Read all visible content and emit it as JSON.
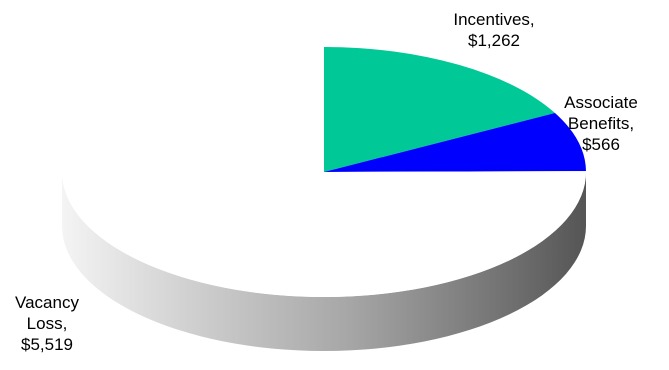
{
  "chart_data": {
    "type": "pie",
    "style": "3d",
    "slices": [
      {
        "label": "Incentives,",
        "value_label": "$1,262",
        "value": 1262,
        "color": "#00C896"
      },
      {
        "label": "Associate Benefits,",
        "value_label": "$566",
        "value": 566,
        "color": "#0000FF"
      },
      {
        "label": "Vacancy Loss,",
        "value_label": "$5,519",
        "value": 5519,
        "color": "#FFFFFF"
      }
    ],
    "legend": "none"
  }
}
